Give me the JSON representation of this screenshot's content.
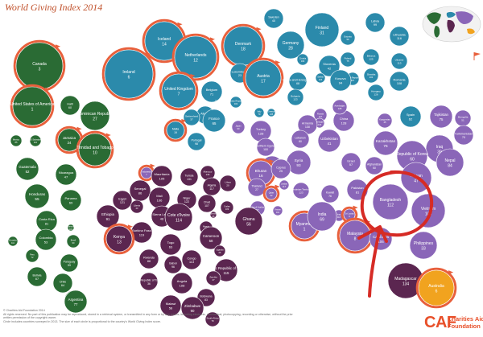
{
  "header": {
    "title": "World Giving Index 2014"
  },
  "footer": {
    "copyright": "© Charities Aid Foundation 2014",
    "rights": "All rights reserved. No part of this publication may be reproduced, stored in a retrieval system, or transmitted in any form or by any means, including electronic, mechanical, photocopying, recording or otherwise, without the prior written permission of the copyright owner.",
    "note": "Circle includes countries surveyed in 2013. The size of each circle is proportional to the country's World Giving Index score."
  },
  "logo": {
    "mark": "CAF",
    "name": "Charities Aid Foundation"
  },
  "colors": {
    "americas": "#2a6b34",
    "europe": "#2b8aab",
    "asia": "#8a66b8",
    "africa": "#5b2650",
    "oceania": "#f1a31f",
    "highlight_ring": "#e8603c",
    "annotation": "#d62b25"
  },
  "circles": [
    {
      "region": "americas",
      "name": "Canada",
      "rank": "3",
      "highlight": true
    },
    {
      "region": "americas",
      "name": "United States of America",
      "rank": "1",
      "highlight": true
    },
    {
      "region": "americas",
      "name": "Haiti",
      "rank": "60"
    },
    {
      "region": "americas",
      "name": "Dominican Republic",
      "rank": "27"
    },
    {
      "region": "americas",
      "name": "Mexico",
      "rank": "85"
    },
    {
      "region": "americas",
      "name": "El Salvador",
      "rank": "110"
    },
    {
      "region": "americas",
      "name": "Jamaica",
      "rank": "24",
      "highlight": true
    },
    {
      "region": "americas",
      "name": "Trinidad and Tobago",
      "rank": "10",
      "highlight": true
    },
    {
      "region": "americas",
      "name": "Guatemala",
      "rank": "52"
    },
    {
      "region": "americas",
      "name": "Nicaragua",
      "rank": "47"
    },
    {
      "region": "americas",
      "name": "Honduras",
      "rank": "55"
    },
    {
      "region": "americas",
      "name": "Panama",
      "rank": "69"
    },
    {
      "region": "americas",
      "name": "Costa Rica",
      "rank": "81"
    },
    {
      "region": "americas",
      "name": "Venezuela",
      "rank": "104"
    },
    {
      "region": "americas",
      "name": "Ecuador",
      "rank": "111"
    },
    {
      "region": "americas",
      "name": "Colombia",
      "rank": "53"
    },
    {
      "region": "americas",
      "name": "Brazil",
      "rank": "90"
    },
    {
      "region": "americas",
      "name": "Peru",
      "rank": "72"
    },
    {
      "region": "americas",
      "name": "Paraguay",
      "rank": "59"
    },
    {
      "region": "americas",
      "name": "Bolivia",
      "rank": "67"
    },
    {
      "region": "americas",
      "name": "Chile",
      "rank": "64"
    },
    {
      "region": "americas",
      "name": "Uruguay",
      "rank": "82"
    },
    {
      "region": "americas",
      "name": "Argentina",
      "rank": "77"
    },
    {
      "region": "europe",
      "name": "Iceland",
      "rank": "14",
      "highlight": true
    },
    {
      "region": "europe",
      "name": "Netherlands",
      "rank": "12",
      "highlight": true
    },
    {
      "region": "europe",
      "name": "Denmark",
      "rank": "18",
      "highlight": true
    },
    {
      "region": "europe",
      "name": "Sweden",
      "rank": "40"
    },
    {
      "region": "europe",
      "name": "Finland",
      "rank": "31"
    },
    {
      "region": "europe",
      "name": "Estonia",
      "rank": "56"
    },
    {
      "region": "europe",
      "name": "Latvia",
      "rank": "99"
    },
    {
      "region": "europe",
      "name": "Lithuania",
      "rank": "116"
    },
    {
      "region": "europe",
      "name": "Ireland",
      "rank": "6",
      "highlight": true
    },
    {
      "region": "europe",
      "name": "United Kingdom",
      "rank": "7",
      "highlight": true
    },
    {
      "region": "europe",
      "name": "Belgium",
      "rank": "71"
    },
    {
      "region": "europe",
      "name": "Luxembourg",
      "rank": "23"
    },
    {
      "region": "europe",
      "name": "Austria",
      "rank": "17",
      "highlight": true
    },
    {
      "region": "europe",
      "name": "Germany",
      "rank": "28"
    },
    {
      "region": "europe",
      "name": "Poland",
      "rank": "75"
    },
    {
      "region": "europe",
      "name": "Belarus",
      "rank": "125"
    },
    {
      "region": "europe",
      "name": "Czech Republic",
      "rank": "107"
    },
    {
      "region": "europe",
      "name": "Slovakia",
      "rank": "101"
    },
    {
      "region": "europe",
      "name": "Slovenia",
      "rank": "42"
    },
    {
      "region": "europe",
      "name": "Croatia",
      "rank": "109"
    },
    {
      "region": "europe",
      "name": "Hungary",
      "rank": "126"
    },
    {
      "region": "europe",
      "name": "Romania",
      "rank": "108"
    },
    {
      "region": "europe",
      "name": "Ukraine",
      "rank": "113"
    },
    {
      "region": "europe",
      "name": "Bosnia and Herzegovina",
      "rank": "68"
    },
    {
      "region": "europe",
      "name": "Serbia",
      "rank": "124"
    },
    {
      "region": "europe",
      "name": "Kosovo",
      "rank": "94"
    },
    {
      "region": "europe",
      "name": "The Former Yugoslav Republic of Macedonia",
      "rank": "102"
    },
    {
      "region": "europe",
      "name": "Italy",
      "rank": "79"
    },
    {
      "region": "europe",
      "name": "Greece",
      "rank": "135"
    },
    {
      "region": "europe",
      "name": "Bulgaria",
      "rank": "123"
    },
    {
      "region": "europe",
      "name": "Albania",
      "rank": "103"
    },
    {
      "region": "europe",
      "name": "Switzerland",
      "rank": "37"
    },
    {
      "region": "europe",
      "name": "France",
      "rank": "65"
    },
    {
      "region": "europe",
      "name": "Malta",
      "rank": "19",
      "highlight": true
    },
    {
      "region": "europe",
      "name": "Portugal",
      "rank": "98"
    },
    {
      "region": "europe",
      "name": "Spain",
      "rank": "62"
    },
    {
      "region": "asia",
      "name": "Kyrgyzstan",
      "rank": "45"
    },
    {
      "region": "asia",
      "name": "Tajikistan",
      "rank": "75"
    },
    {
      "region": "asia",
      "name": "Mongolia",
      "rank": "51"
    },
    {
      "region": "asia",
      "name": "China",
      "rank": "128"
    },
    {
      "region": "asia",
      "name": "Russia",
      "rank": "127"
    },
    {
      "region": "asia",
      "name": "Georgia",
      "rank": "140"
    },
    {
      "region": "asia",
      "name": "Azerbaijan",
      "rank": "128"
    },
    {
      "region": "asia",
      "name": "Armenia",
      "rank": "130"
    },
    {
      "region": "asia",
      "name": "Kazakhstan",
      "rank": "76"
    },
    {
      "region": "asia",
      "name": "Uzbekistan",
      "rank": "41"
    },
    {
      "region": "asia",
      "name": "Turkmenistan",
      "rank": "70"
    },
    {
      "region": "asia",
      "name": "Japan",
      "rank": "90"
    },
    {
      "region": "asia",
      "name": "Turkey",
      "rank": "128"
    },
    {
      "region": "asia",
      "name": "Northern Cyprus",
      "rank": "100"
    },
    {
      "region": "asia",
      "name": "Lebanon",
      "rank": "80"
    },
    {
      "region": "asia",
      "name": "Syria",
      "rank": "93"
    },
    {
      "region": "asia",
      "name": "Iran",
      "rank": "38"
    },
    {
      "region": "asia",
      "name": "Iraq",
      "rank": "39"
    },
    {
      "region": "asia",
      "name": "Republic of Korea",
      "rank": "60"
    },
    {
      "region": "asia",
      "name": "Bhutan",
      "rank": "16",
      "highlight": true
    },
    {
      "region": "asia",
      "name": "Cyprus",
      "rank": "25"
    },
    {
      "region": "asia",
      "name": "Israel",
      "rank": "57"
    },
    {
      "region": "asia",
      "name": "Afghanistan",
      "rank": "50"
    },
    {
      "region": "asia",
      "name": "Nepal",
      "rank": "84"
    },
    {
      "region": "asia",
      "name": "Taiwan",
      "rank": "47"
    },
    {
      "region": "asia",
      "name": "Thailand",
      "rank": "27"
    },
    {
      "region": "asia",
      "name": "Qatar",
      "rank": "32",
      "highlight": true
    },
    {
      "region": "asia",
      "name": "Jordan",
      "rank": "117"
    },
    {
      "region": "asia",
      "name": "Palestinian Territories",
      "rank": "123"
    },
    {
      "region": "asia",
      "name": "Kuwait",
      "rank": "76"
    },
    {
      "region": "asia",
      "name": "Pakistan",
      "rank": "81"
    },
    {
      "region": "asia",
      "name": "Bangladesh",
      "rank": "112"
    },
    {
      "region": "asia",
      "name": "Myanmar",
      "rank": "1",
      "highlight": true
    },
    {
      "region": "asia",
      "name": "Saudi Arabia",
      "rank": "97"
    },
    {
      "region": "asia",
      "name": "Yemen",
      "rank": "101"
    },
    {
      "region": "asia",
      "name": "Iraq",
      "rank": "118"
    },
    {
      "region": "asia",
      "name": "India",
      "rank": "69"
    },
    {
      "region": "asia",
      "name": "Sri Lanka",
      "rank": "9",
      "highlight": true
    },
    {
      "region": "asia",
      "name": "Vietnam",
      "rank": "105"
    },
    {
      "region": "asia",
      "name": "Malaysia",
      "rank": "8",
      "highlight": true
    },
    {
      "region": "asia",
      "name": "Cambodia",
      "rank": "106"
    },
    {
      "region": "asia",
      "name": "Philippines",
      "rank": "33"
    },
    {
      "region": "asia",
      "name": "Indonesia",
      "rank": "7",
      "highlight": true
    },
    {
      "region": "africa",
      "name": "Mauritania",
      "rank": "105"
    },
    {
      "region": "africa",
      "name": "Tunisia",
      "rank": "131"
    },
    {
      "region": "africa",
      "name": "Morocco",
      "rank": "130"
    },
    {
      "region": "africa",
      "name": "Algeria",
      "rank": "117"
    },
    {
      "region": "africa",
      "name": "Libya",
      "rank": "20"
    },
    {
      "region": "africa",
      "name": "Egypt",
      "rank": "121"
    },
    {
      "region": "africa",
      "name": "Senegal",
      "rank": "86"
    },
    {
      "region": "africa",
      "name": "Mali",
      "rank": "106"
    },
    {
      "region": "africa",
      "name": "Niger",
      "rank": "122"
    },
    {
      "region": "africa",
      "name": "Chad",
      "rank": "107"
    },
    {
      "region": "africa",
      "name": "Sudan",
      "rank": "109"
    },
    {
      "region": "africa",
      "name": "Ethiopia",
      "rank": "91"
    },
    {
      "region": "africa",
      "name": "Liberia",
      "rank": "43"
    },
    {
      "region": "africa",
      "name": "Sierra Leone",
      "rank": "48"
    },
    {
      "region": "africa",
      "name": "Burkina Faso",
      "rank": "119"
    },
    {
      "region": "africa",
      "name": "Ghana",
      "rank": "56"
    },
    {
      "region": "africa",
      "name": "Kenya",
      "rank": "13",
      "highlight": true
    },
    {
      "region": "africa",
      "name": "Cote d'Ivoire",
      "rank": "114"
    },
    {
      "region": "africa",
      "name": "Nigeria",
      "rank": "21"
    },
    {
      "region": "africa",
      "name": "Benin",
      "rank": "66"
    },
    {
      "region": "africa",
      "name": "Togo",
      "rank": "63"
    },
    {
      "region": "africa",
      "name": "Cameroon",
      "rank": "58"
    },
    {
      "region": "africa",
      "name": "Uganda",
      "rank": "26"
    },
    {
      "region": "africa",
      "name": "Rwanda",
      "rank": "88"
    },
    {
      "region": "africa",
      "name": "Gabon",
      "rank": "96"
    },
    {
      "region": "africa",
      "name": "Congo",
      "rank": "113"
    },
    {
      "region": "africa",
      "name": "Democratic Republic of the Congo",
      "rank": "115"
    },
    {
      "region": "africa",
      "name": "United Republic of Tanzania",
      "rank": "36"
    },
    {
      "region": "africa",
      "name": "Angola",
      "rank": "108"
    },
    {
      "region": "africa",
      "name": "Zambia",
      "rank": "47"
    },
    {
      "region": "africa",
      "name": "Malawi",
      "rank": "58"
    },
    {
      "region": "africa",
      "name": "Botswana",
      "rank": "83"
    },
    {
      "region": "africa",
      "name": "Zimbabwe",
      "rank": "90"
    },
    {
      "region": "africa",
      "name": "South Africa",
      "rank": "78"
    },
    {
      "region": "africa",
      "name": "Madagascar",
      "rank": "134"
    },
    {
      "region": "oceania",
      "name": "Australia",
      "rank": "6",
      "highlight": true
    },
    {
      "region": "oceania",
      "name": "New Zealand",
      "rank": "5",
      "highlight": true
    }
  ]
}
